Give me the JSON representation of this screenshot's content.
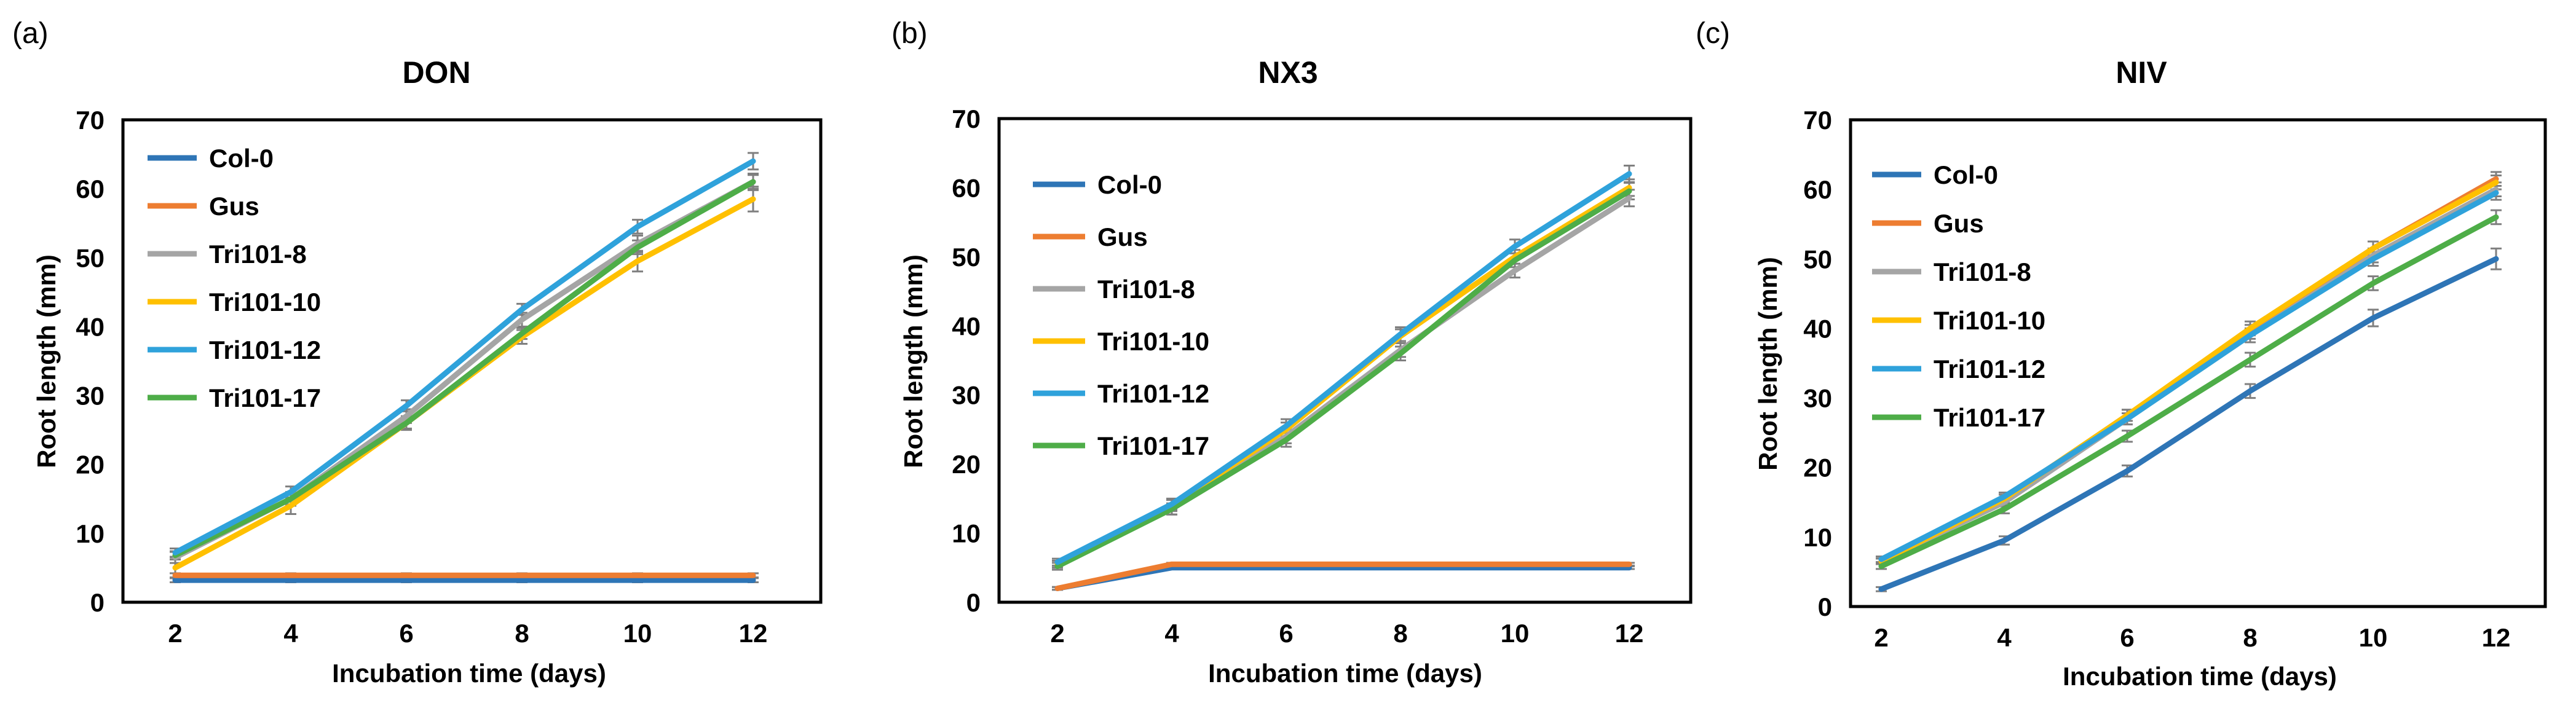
{
  "colors": {
    "Col-0": "#2E75B6",
    "Gus": "#ED7D31",
    "Tri101-8": "#A5A5A5",
    "Tri101-10": "#FFC000",
    "Tri101-12": "#2FA2DB",
    "Tri101-17": "#4EAD48",
    "error_bar": "#7F7F7F"
  },
  "chart_data": [
    {
      "type": "line",
      "panel_label": "(a)",
      "title": "DON",
      "xlabel": "Incubation time (days)",
      "ylabel": "Root length (mm)",
      "x": [
        2,
        4,
        6,
        8,
        10,
        12
      ],
      "xlim": [
        2,
        12
      ],
      "ylim": [
        0,
        70
      ],
      "yticks": [
        0,
        10,
        20,
        30,
        40,
        50,
        60,
        70
      ],
      "legend": [
        "Col-0",
        "Gus",
        "Tri101-8",
        "Tri101-10",
        "Tri101-12",
        "Tri101-17"
      ],
      "series": [
        {
          "name": "Col-0",
          "values": [
            3.2,
            3.2,
            3.2,
            3.2,
            3.2,
            3.2
          ],
          "errors": [
            0.3,
            0.3,
            0.3,
            0.3,
            0.3,
            0.3
          ]
        },
        {
          "name": "Gus",
          "values": [
            3.9,
            3.9,
            3.9,
            3.9,
            3.9,
            3.9
          ],
          "errors": [
            0.3,
            0.3,
            0.3,
            0.3,
            0.3,
            0.3
          ]
        },
        {
          "name": "Tri101-8",
          "values": [
            6.5,
            15.0,
            27.0,
            41.0,
            52.0,
            61.0
          ],
          "errors": [
            0.8,
            1.0,
            1.0,
            1.0,
            1.2,
            1.2
          ]
        },
        {
          "name": "Tri101-10",
          "values": [
            5.0,
            14.0,
            26.0,
            38.5,
            49.5,
            58.5
          ],
          "errors": [
            1.5,
            1.2,
            1.0,
            1.0,
            1.5,
            1.8
          ]
        },
        {
          "name": "Tri101-12",
          "values": [
            7.2,
            16.0,
            28.5,
            42.5,
            54.5,
            64.0
          ],
          "errors": [
            0.6,
            0.8,
            0.8,
            0.8,
            1.0,
            1.2
          ]
        },
        {
          "name": "Tri101-17",
          "values": [
            6.8,
            15.0,
            26.0,
            39.0,
            51.5,
            61.0
          ],
          "errors": [
            0.6,
            0.8,
            0.8,
            0.8,
            1.0,
            1.0
          ]
        }
      ]
    },
    {
      "type": "line",
      "panel_label": "(b)",
      "title": "NX3",
      "xlabel": "Incubation time (days)",
      "ylabel": "Root length (mm)",
      "x": [
        2,
        4,
        6,
        8,
        10,
        12
      ],
      "xlim": [
        2,
        12
      ],
      "ylim": [
        0,
        70
      ],
      "yticks": [
        0,
        10,
        20,
        30,
        40,
        50,
        60,
        70
      ],
      "legend": [
        "Col-0",
        "Gus",
        "Tri101-8",
        "Tri101-10",
        "Tri101-12",
        "Tri101-17"
      ],
      "series": [
        {
          "name": "Col-0",
          "values": [
            2.0,
            5.0,
            5.0,
            5.0,
            5.0,
            5.0
          ],
          "errors": [
            0.2,
            0.2,
            0.2,
            0.2,
            0.2,
            0.2
          ]
        },
        {
          "name": "Gus",
          "values": [
            2.0,
            5.5,
            5.5,
            5.5,
            5.5,
            5.5
          ],
          "errors": [
            0.2,
            0.2,
            0.2,
            0.2,
            0.2,
            0.2
          ]
        },
        {
          "name": "Tri101-8",
          "values": [
            5.5,
            13.5,
            24.0,
            36.5,
            48.0,
            58.5
          ],
          "errors": [
            0.5,
            0.8,
            1.0,
            1.0,
            1.0,
            1.2
          ]
        },
        {
          "name": "Tri101-10",
          "values": [
            5.5,
            14.0,
            25.0,
            38.5,
            50.0,
            60.0
          ],
          "errors": [
            0.5,
            0.8,
            1.0,
            1.0,
            1.0,
            1.2
          ]
        },
        {
          "name": "Tri101-12",
          "values": [
            5.8,
            14.2,
            25.5,
            38.8,
            51.5,
            62.0
          ],
          "errors": [
            0.5,
            0.8,
            1.0,
            1.0,
            1.0,
            1.2
          ]
        },
        {
          "name": "Tri101-17",
          "values": [
            5.2,
            13.5,
            23.5,
            36.0,
            49.5,
            59.5
          ],
          "errors": [
            0.5,
            0.8,
            1.0,
            1.0,
            1.0,
            1.2
          ]
        }
      ]
    },
    {
      "type": "line",
      "panel_label": "(c)",
      "title": "NIV",
      "xlabel": "Incubation time (days)",
      "ylabel": "Root length (mm)",
      "x": [
        2,
        4,
        6,
        8,
        10,
        12
      ],
      "xlim": [
        2,
        12
      ],
      "ylim": [
        0,
        70
      ],
      "yticks": [
        0,
        10,
        20,
        30,
        40,
        50,
        60,
        70
      ],
      "legend": [
        "Col-0",
        "Gus",
        "Tri101-8",
        "Tri101-10",
        "Tri101-12",
        "Tri101-17"
      ],
      "series": [
        {
          "name": "Col-0",
          "values": [
            2.5,
            9.5,
            19.5,
            31.0,
            41.5,
            50.0
          ],
          "errors": [
            0.3,
            0.6,
            0.8,
            1.0,
            1.2,
            1.5
          ]
        },
        {
          "name": "Gus",
          "values": [
            6.5,
            15.5,
            27.5,
            39.5,
            51.5,
            61.5
          ],
          "errors": [
            0.4,
            0.6,
            0.8,
            1.0,
            1.0,
            1.0
          ]
        },
        {
          "name": "Tri101-8",
          "values": [
            6.5,
            15.0,
            27.0,
            39.0,
            50.5,
            60.0
          ],
          "errors": [
            0.4,
            0.6,
            0.8,
            1.0,
            1.0,
            1.0
          ]
        },
        {
          "name": "Tri101-10",
          "values": [
            6.5,
            15.5,
            27.5,
            40.0,
            51.5,
            61.0
          ],
          "errors": [
            0.4,
            0.6,
            0.8,
            1.0,
            1.0,
            1.0
          ]
        },
        {
          "name": "Tri101-12",
          "values": [
            6.8,
            15.8,
            27.0,
            39.0,
            50.0,
            59.5
          ],
          "errors": [
            0.4,
            0.6,
            0.8,
            1.0,
            1.0,
            1.0
          ]
        },
        {
          "name": "Tri101-17",
          "values": [
            5.8,
            14.0,
            24.5,
            35.5,
            46.5,
            56.0
          ],
          "errors": [
            0.4,
            0.6,
            0.8,
            1.0,
            1.0,
            1.0
          ]
        }
      ]
    }
  ]
}
